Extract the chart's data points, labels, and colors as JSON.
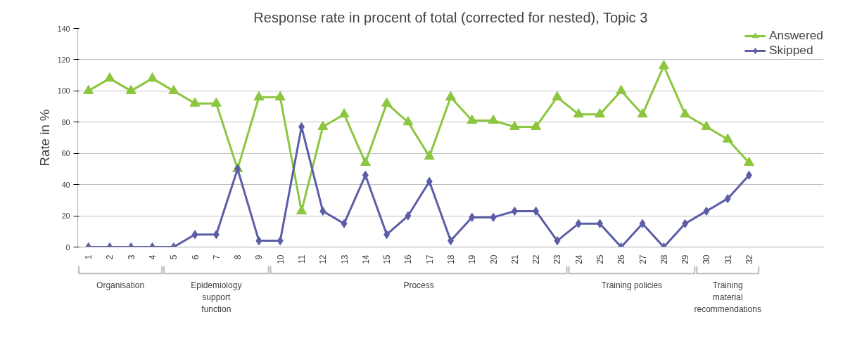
{
  "chart_data": {
    "type": "line",
    "title": "Response rate in procent of total (corrected for nested), Topic 3",
    "ylabel": "Rate in %",
    "categories": [
      "1",
      "2",
      "3",
      "4",
      "5",
      "6",
      "7",
      "8",
      "9",
      "10",
      "11",
      "12",
      "13",
      "14",
      "15",
      "16",
      "17",
      "18",
      "19",
      "20",
      "21",
      "22",
      "23",
      "24",
      "25",
      "26",
      "27",
      "28",
      "29",
      "30",
      "31",
      "32"
    ],
    "series": [
      {
        "name": "Answered",
        "color": "#8cc63f",
        "marker": "triangle",
        "values": [
          100,
          108,
          100,
          108,
          100,
          92,
          92,
          50,
          96,
          96,
          23,
          77,
          85,
          54,
          92,
          80,
          58,
          96,
          81,
          81,
          77,
          77,
          96,
          85,
          85,
          100,
          85,
          116,
          85,
          77,
          69,
          54
        ]
      },
      {
        "name": "Skipped",
        "color": "#5b5ea6",
        "marker": "diamond",
        "values": [
          0,
          0,
          0,
          0,
          0,
          8,
          8,
          50,
          4,
          4,
          77,
          23,
          15,
          46,
          8,
          20,
          42,
          4,
          19,
          19,
          23,
          23,
          4,
          15,
          15,
          0,
          15,
          0,
          15,
          23,
          31,
          46
        ]
      }
    ],
    "annotations": [
      "Organisation",
      "Epidemiology support function",
      "Process",
      "Training policies",
      "Training material recommendations"
    ],
    "ylim": [
      0,
      140
    ],
    "yticks": [
      0,
      20,
      40,
      60,
      80,
      100,
      120,
      140
    ],
    "grid": "y",
    "legend": "top right",
    "line_style": "solid"
  }
}
